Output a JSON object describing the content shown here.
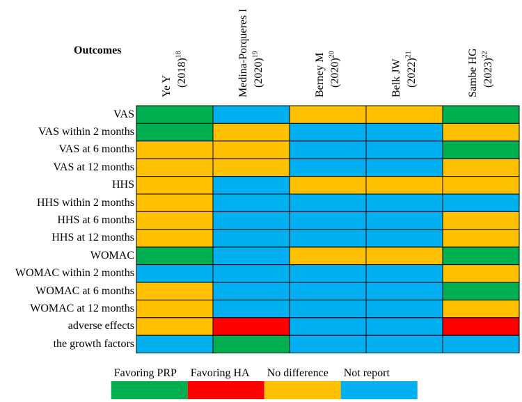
{
  "header": {
    "outcomes_label": "Outcomes"
  },
  "colors": {
    "Favoring PRP": "#00B050",
    "Favoring HA": "#FF0000",
    "No difference": "#FFC000",
    "Not report": "#00B0F0"
  },
  "chart_data": {
    "type": "heatmap",
    "title": "",
    "row_header": "Outcomes",
    "studies": [
      {
        "name": "Ye Y",
        "year": "(2018)",
        "ref": "18"
      },
      {
        "name": "Medina-Porqueres I",
        "year": "(2020)",
        "ref": "19"
      },
      {
        "name": "Berney M",
        "year": "(2020)",
        "ref": "20"
      },
      {
        "name": "Belk JW",
        "year": "(2022)",
        "ref": "21"
      },
      {
        "name": "Sambe HG",
        "year": "(2023)",
        "ref": "22"
      }
    ],
    "outcomes": [
      "VAS",
      "VAS within 2 months",
      "VAS at 6 months",
      "VAS at 12 months",
      "HHS",
      "HHS within 2 months",
      "HHS at 6 months",
      "HHS at 12 months",
      "WOMAC",
      "WOMAC within 2 months",
      "WOMAC at 6 months",
      "WOMAC at 12 months",
      "adverse effects",
      "the growth factors"
    ],
    "categories": [
      "Favoring PRP",
      "Favoring HA",
      "No difference",
      "Not report"
    ],
    "cells": [
      [
        "Favoring PRP",
        "Not report",
        "No difference",
        "No difference",
        "Favoring PRP"
      ],
      [
        "Favoring PRP",
        "No difference",
        "Not report",
        "Not report",
        "No difference"
      ],
      [
        "No difference",
        "No difference",
        "Not report",
        "Not report",
        "Favoring PRP"
      ],
      [
        "No difference",
        "No difference",
        "Not report",
        "Not report",
        "No difference"
      ],
      [
        "No difference",
        "Not report",
        "No difference",
        "No difference",
        "No difference"
      ],
      [
        "No difference",
        "Not report",
        "Not report",
        "Not report",
        "Not report"
      ],
      [
        "No difference",
        "Not report",
        "Not report",
        "Not report",
        "No difference"
      ],
      [
        "No difference",
        "Not report",
        "Not report",
        "Not report",
        "No difference"
      ],
      [
        "Favoring PRP",
        "Not report",
        "No difference",
        "No difference",
        "Favoring PRP"
      ],
      [
        "Not report",
        "Not report",
        "Not report",
        "Not report",
        "No difference"
      ],
      [
        "No difference",
        "Not report",
        "Not report",
        "Not report",
        "Favoring PRP"
      ],
      [
        "No difference",
        "Not report",
        "Not report",
        "Not report",
        "No difference"
      ],
      [
        "No difference",
        "Favoring HA",
        "Not report",
        "Not report",
        "Favoring HA"
      ],
      [
        "Not report",
        "Favoring PRP",
        "Not report",
        "Not report",
        "Not report"
      ]
    ],
    "legend": [
      "Favoring PRP",
      "Favoring HA",
      "No difference",
      "Not report"
    ],
    "legend_position": "bottom"
  }
}
